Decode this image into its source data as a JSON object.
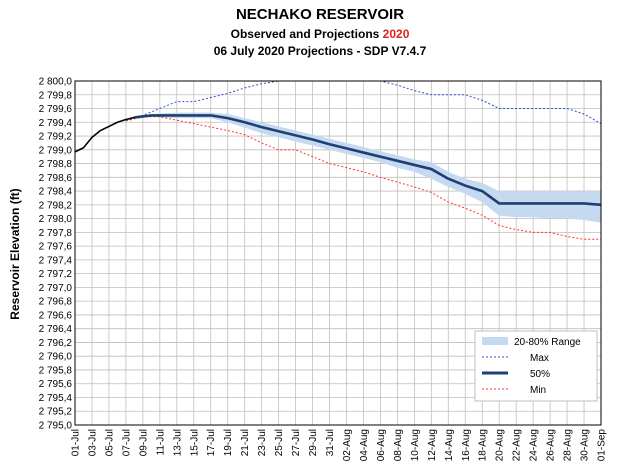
{
  "header": {
    "title": "NECHAKO RESERVOIR",
    "subtitle_prefix": "Observed and Projections ",
    "subtitle_year": "2020",
    "subtitle2": "06 July 2020 Projections - SDP V7.4.7"
  },
  "colors": {
    "band": "#c5d9f1",
    "max": "#2e4fd6",
    "p50": "#1f3f73",
    "min": "#ff3030",
    "observed": "#000000",
    "highlight": "#e02020"
  },
  "chart_data": {
    "type": "line",
    "title": "NECHAKO RESERVOIR",
    "ylabel": "Reservoir Elevation (ft)",
    "xlabel": "",
    "ylim": [
      2795.0,
      2800.0
    ],
    "ytick_step": 0.2,
    "grid": true,
    "legend_position": "bottom-right",
    "x_ticks": [
      "01-Jul",
      "03-Jul",
      "05-Jul",
      "07-Jul",
      "09-Jul",
      "11-Jul",
      "13-Jul",
      "15-Jul",
      "17-Jul",
      "19-Jul",
      "21-Jul",
      "23-Jul",
      "25-Jul",
      "27-Jul",
      "29-Jul",
      "31-Jul",
      "02-Aug",
      "04-Aug",
      "06-Aug",
      "08-Aug",
      "10-Aug",
      "12-Aug",
      "14-Aug",
      "16-Aug",
      "18-Aug",
      "20-Aug",
      "22-Aug",
      "24-Aug",
      "26-Aug",
      "28-Aug",
      "30-Aug",
      "01-Sep"
    ],
    "y_ticks": [
      "2 795,0",
      "2 795,2",
      "2 795,4",
      "2 795,6",
      "2 795,8",
      "2 796,0",
      "2 796,2",
      "2 796,4",
      "2 796,6",
      "2 796,8",
      "2 797,0",
      "2 797,2",
      "2 797,4",
      "2 797,6",
      "2 797,8",
      "2 798,0",
      "2 798,2",
      "2 798,4",
      "2 798,6",
      "2 798,8",
      "2 799,0",
      "2 799,2",
      "2 799,4",
      "2 799,6",
      "2 799,8",
      "2 800,0"
    ],
    "legend": [
      "20-80% Range",
      "Max",
      "50%",
      "Min"
    ],
    "series": [
      {
        "name": "Observed",
        "key": "observed",
        "x": [
          "01-Jul",
          "02-Jul",
          "03-Jul",
          "04-Jul",
          "05-Jul",
          "06-Jul",
          "07-Jul",
          "08-Jul"
        ],
        "values": [
          2798.97,
          2799.03,
          2799.18,
          2799.28,
          2799.34,
          2799.4,
          2799.44,
          2799.47
        ]
      },
      {
        "name": "Max",
        "key": "max",
        "x": [
          "07-Jul",
          "09-Jul",
          "11-Jul",
          "13-Jul",
          "15-Jul",
          "17-Jul",
          "19-Jul",
          "21-Jul",
          "23-Jul",
          "25-Jul",
          "27-Jul",
          "29-Jul",
          "31-Jul",
          "02-Aug",
          "04-Aug",
          "06-Aug",
          "08-Aug",
          "10-Aug",
          "12-Aug",
          "14-Aug",
          "16-Aug",
          "18-Aug",
          "20-Aug",
          "22-Aug",
          "24-Aug",
          "26-Aug",
          "28-Aug",
          "30-Aug",
          "01-Sep"
        ],
        "values": [
          2799.42,
          2799.5,
          2799.6,
          2799.7,
          2799.7,
          2799.76,
          2799.82,
          2799.9,
          2799.96,
          2800.0,
          2800.0,
          2800.0,
          2800.0,
          2800.0,
          2800.0,
          2800.0,
          2799.94,
          2799.86,
          2799.8,
          2799.8,
          2799.8,
          2799.72,
          2799.6,
          2799.6,
          2799.6,
          2799.6,
          2799.6,
          2799.52,
          2799.38
        ]
      },
      {
        "name": "50%",
        "key": "p50",
        "x": [
          "08-Jul",
          "10-Jul",
          "13-Jul",
          "17-Jul",
          "19-Jul",
          "21-Jul",
          "23-Jul",
          "25-Jul",
          "27-Jul",
          "29-Jul",
          "31-Jul",
          "02-Aug",
          "04-Aug",
          "06-Aug",
          "08-Aug",
          "10-Aug",
          "12-Aug",
          "14-Aug",
          "16-Aug",
          "18-Aug",
          "20-Aug",
          "22-Aug",
          "24-Aug",
          "26-Aug",
          "28-Aug",
          "30-Aug",
          "01-Sep"
        ],
        "values": [
          2799.47,
          2799.5,
          2799.5,
          2799.5,
          2799.46,
          2799.4,
          2799.33,
          2799.27,
          2799.21,
          2799.15,
          2799.08,
          2799.02,
          2798.96,
          2798.9,
          2798.84,
          2798.78,
          2798.72,
          2798.58,
          2798.48,
          2798.4,
          2798.22,
          2798.22,
          2798.22,
          2798.22,
          2798.22,
          2798.22,
          2798.2
        ]
      },
      {
        "name": "Min",
        "key": "min",
        "x": [
          "07-Jul",
          "09-Jul",
          "11-Jul",
          "13-Jul",
          "15-Jul",
          "17-Jul",
          "19-Jul",
          "21-Jul",
          "23-Jul",
          "25-Jul",
          "27-Jul",
          "29-Jul",
          "31-Jul",
          "02-Aug",
          "04-Aug",
          "06-Aug",
          "08-Aug",
          "10-Aug",
          "12-Aug",
          "14-Aug",
          "16-Aug",
          "18-Aug",
          "20-Aug",
          "22-Aug",
          "24-Aug",
          "26-Aug",
          "28-Aug",
          "30-Aug",
          "01-Sep"
        ],
        "values": [
          2799.42,
          2799.48,
          2799.48,
          2799.43,
          2799.38,
          2799.33,
          2799.28,
          2799.22,
          2799.1,
          2799.0,
          2799.0,
          2798.9,
          2798.8,
          2798.74,
          2798.68,
          2798.6,
          2798.53,
          2798.46,
          2798.38,
          2798.24,
          2798.15,
          2798.05,
          2797.9,
          2797.84,
          2797.8,
          2797.8,
          2797.74,
          2797.7,
          2797.7
        ]
      },
      {
        "name": "20-80% Range",
        "key": "band",
        "x": [
          "08-Jul",
          "10-Jul",
          "13-Jul",
          "17-Jul",
          "19-Jul",
          "21-Jul",
          "23-Jul",
          "25-Jul",
          "27-Jul",
          "29-Jul",
          "31-Jul",
          "02-Aug",
          "04-Aug",
          "06-Aug",
          "08-Aug",
          "10-Aug",
          "12-Aug",
          "14-Aug",
          "16-Aug",
          "18-Aug",
          "20-Aug",
          "22-Aug",
          "24-Aug",
          "26-Aug",
          "28-Aug",
          "30-Aug",
          "01-Sep"
        ],
        "upper": [
          2799.48,
          2799.52,
          2799.54,
          2799.54,
          2799.52,
          2799.46,
          2799.4,
          2799.34,
          2799.28,
          2799.22,
          2799.16,
          2799.1,
          2799.04,
          2798.98,
          2798.92,
          2798.86,
          2798.82,
          2798.68,
          2798.58,
          2798.52,
          2798.4,
          2798.4,
          2798.4,
          2798.4,
          2798.4,
          2798.4,
          2798.4
        ],
        "lower": [
          2799.46,
          2799.48,
          2799.46,
          2799.46,
          2799.4,
          2799.32,
          2799.24,
          2799.18,
          2799.12,
          2799.06,
          2799.0,
          2798.94,
          2798.88,
          2798.82,
          2798.74,
          2798.68,
          2798.58,
          2798.46,
          2798.36,
          2798.24,
          2798.04,
          2798.02,
          2798.02,
          2798.0,
          2798.0,
          2797.98,
          2797.94
        ]
      }
    ]
  }
}
